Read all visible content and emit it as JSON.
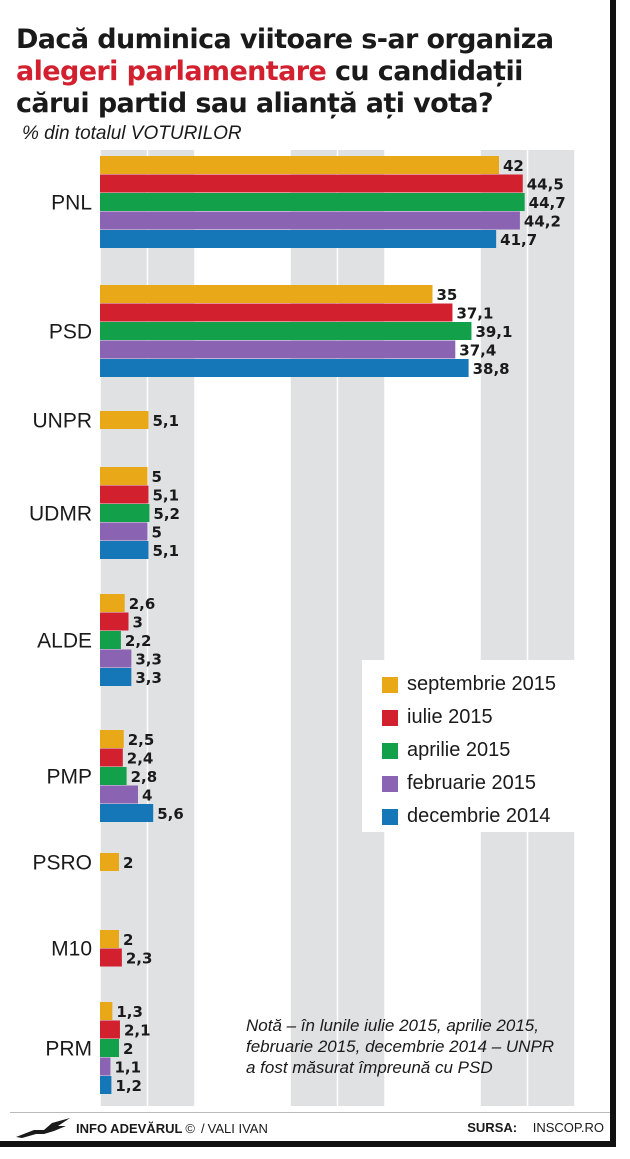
{
  "header": {
    "title_line1": "Dacă duminica viitoare s-ar organiza",
    "title_line2_accent": "alegeri parlamentare",
    "title_line2_rest": " cu candidații",
    "title_line3": "cărui partid sau alianță ați vota?",
    "subtitle": "% din totalul VOTURILOR"
  },
  "chart_data": {
    "type": "bar",
    "orientation": "horizontal",
    "categories": [
      "PNL",
      "PSD",
      "UNPR",
      "UDMR",
      "ALDE",
      "PMP",
      "PSRO",
      "M10",
      "PRM"
    ],
    "series": [
      {
        "name": "septembrie 2015",
        "color": "#e8a817",
        "values": [
          42,
          35,
          5.1,
          5,
          2.6,
          2.5,
          2,
          2,
          1.3
        ]
      },
      {
        "name": "iulie 2015",
        "color": "#d2202f",
        "values": [
          44.5,
          37.1,
          null,
          5.1,
          3,
          2.4,
          null,
          2.3,
          2.1
        ]
      },
      {
        "name": "aprilie 2015",
        "color": "#13a04a",
        "values": [
          44.7,
          39.1,
          null,
          5.2,
          2.2,
          2.8,
          null,
          null,
          2
        ]
      },
      {
        "name": "februarie 2015",
        "color": "#8a63b3",
        "values": [
          44.2,
          37.4,
          null,
          5,
          3.3,
          4,
          null,
          null,
          1.1
        ]
      },
      {
        "name": "decembrie 2014",
        "color": "#1677b8",
        "values": [
          41.7,
          38.8,
          null,
          5.1,
          3.3,
          5.6,
          null,
          null,
          1.2
        ]
      }
    ],
    "value_labels": [
      [
        "42",
        "44,5",
        "44,7",
        "44,2",
        "41,7"
      ],
      [
        "35",
        "37,1",
        "39,1",
        "37,4",
        "38,8"
      ],
      [
        "5,1"
      ],
      [
        "5",
        "5,1",
        "5,2",
        "5",
        "5,1"
      ],
      [
        "2,6",
        "3",
        "2,2",
        "3,3",
        "3,3"
      ],
      [
        "2,5",
        "2,4",
        "2,8",
        "4",
        "5,6"
      ],
      [
        "2"
      ],
      [
        "2",
        "2,3"
      ],
      [
        "1,3",
        "2,1",
        "2",
        "1,1",
        "1,2"
      ]
    ],
    "xlim": [
      0,
      50
    ],
    "grid": true,
    "legend_position": "right-middle"
  },
  "note": {
    "line1": "Notă – în lunile iulie 2015, aprilie 2015,",
    "line2": "februarie 2015, decembrie 2014 – UNPR",
    "line3": "a fost măsurat împreună cu PSD"
  },
  "footer": {
    "brand": "INFO ADEVĂRUL",
    "copyright": "©",
    "separator": "/",
    "author": "VALI IVAN",
    "source_label": "SURSA:",
    "source": "INSCOP.RO"
  },
  "icons": {
    "brand_logo": "eagle-icon"
  }
}
